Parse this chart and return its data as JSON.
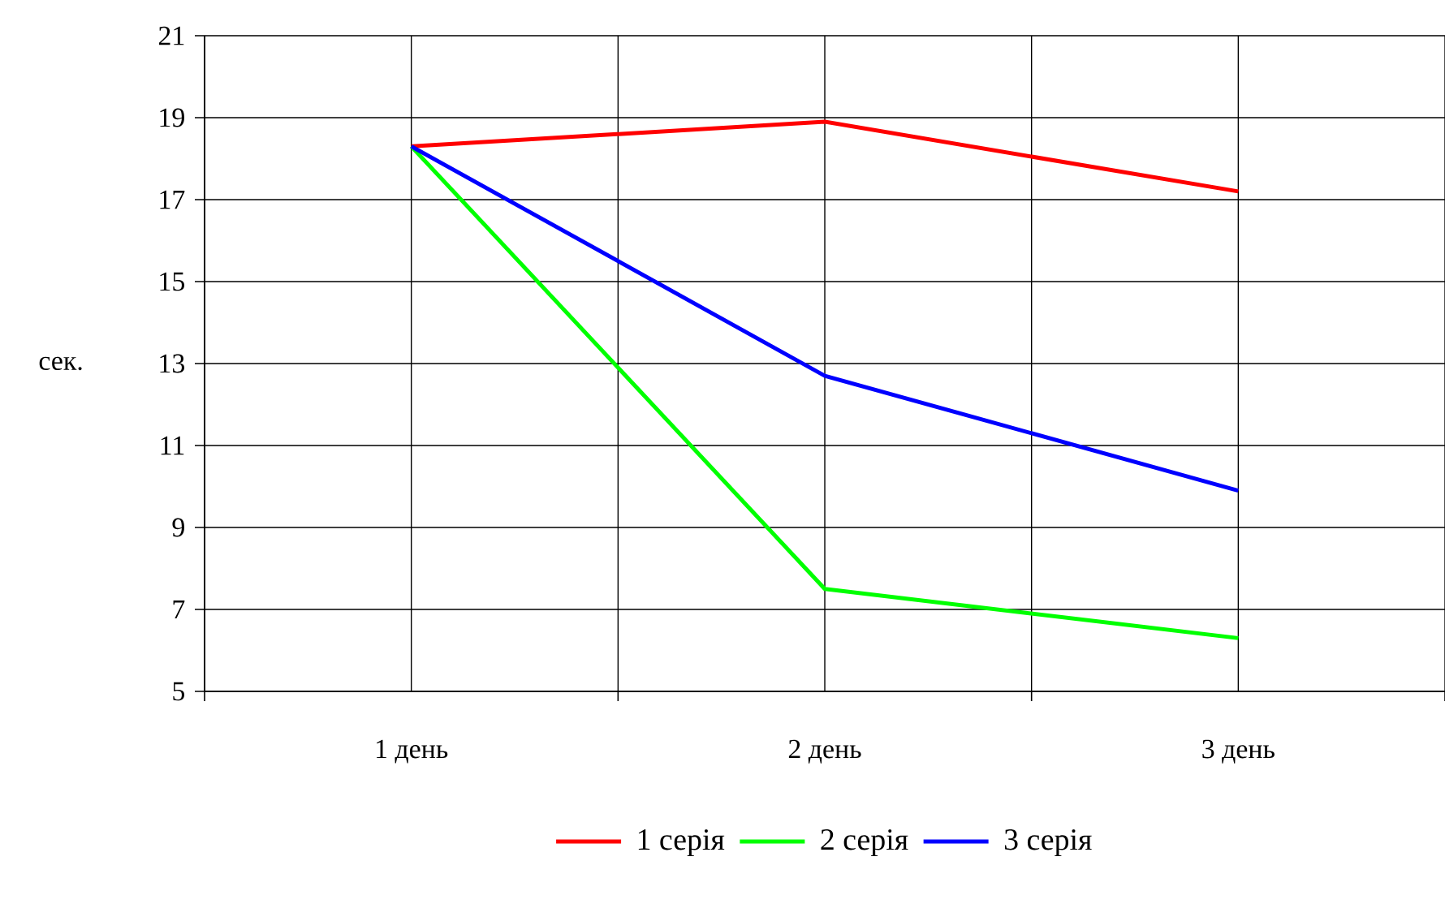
{
  "chart_data": {
    "type": "line",
    "ylabel": "сек.",
    "categories": [
      "1 день",
      "2 день",
      "3 день"
    ],
    "series": [
      {
        "name": "1 серія",
        "color": "#ff0000",
        "values": [
          18.3,
          18.9,
          17.2
        ]
      },
      {
        "name": "2 серія",
        "color": "#00ff00",
        "values": [
          18.3,
          7.5,
          6.3
        ]
      },
      {
        "name": "3 серія",
        "color": "#0000ff",
        "values": [
          18.3,
          12.7,
          9.9
        ]
      }
    ],
    "ylim": [
      5,
      21
    ],
    "yticks": [
      5,
      7,
      9,
      11,
      13,
      15,
      17,
      19,
      21
    ],
    "grid": true,
    "legend": "bottom",
    "marker": "none",
    "line_style": "solid"
  }
}
